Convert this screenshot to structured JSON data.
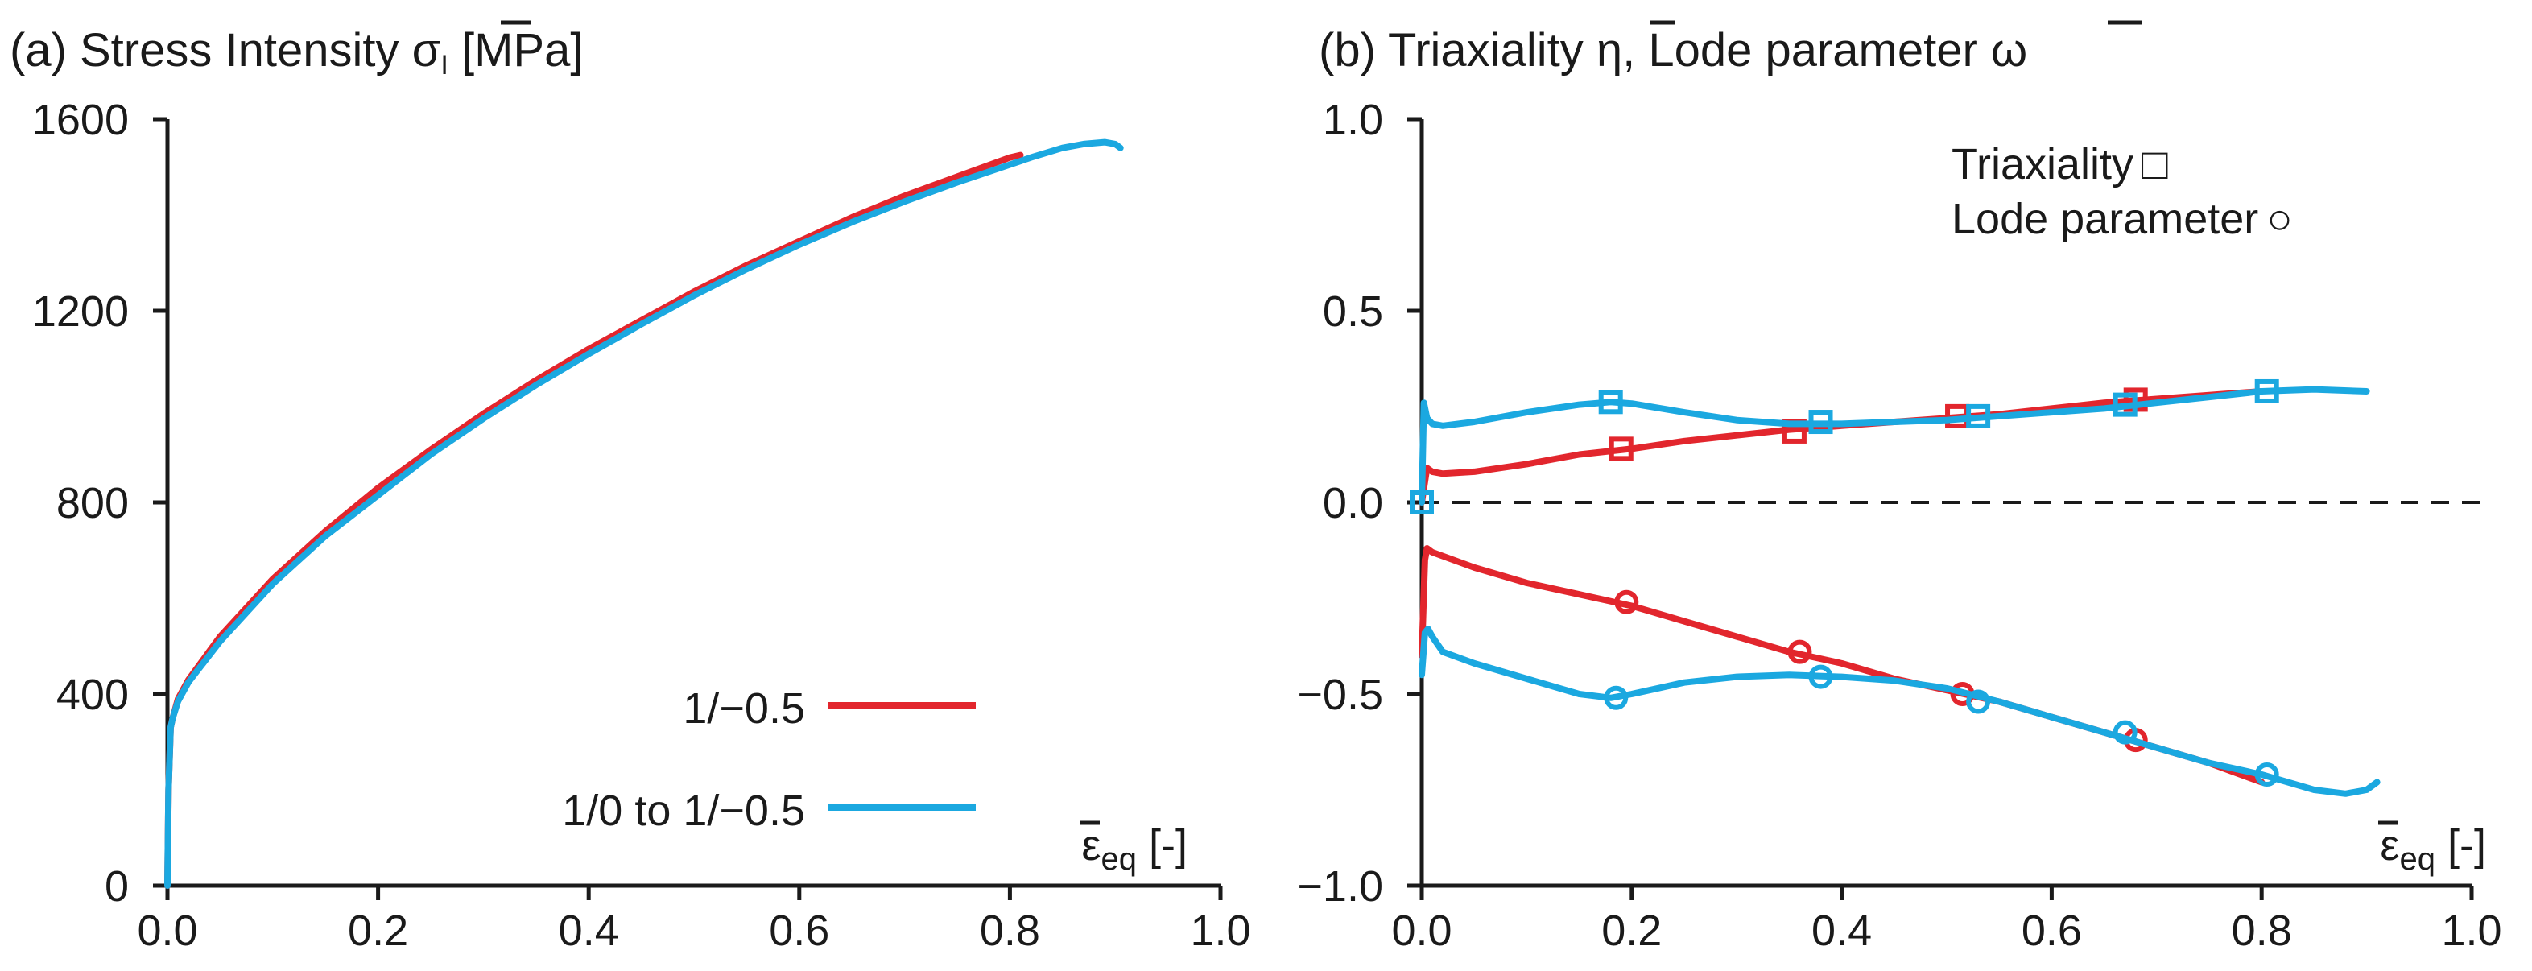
{
  "colors": {
    "red": "#e2262d",
    "blue": "#1ba8e0",
    "axis": "#1a1a1a"
  },
  "chart_data": [
    {
      "type": "line",
      "panel": "a",
      "title_parts": {
        "prefix": "(a) Stress Intensity ",
        "symbol": "σ",
        "sub": "I",
        "suffix": " [MPa]"
      },
      "xlabel": {
        "symbol": "ε",
        "sub": "eq",
        "unit": " [-]"
      },
      "xlim": [
        0.0,
        1.0
      ],
      "ylim": [
        0,
        1600
      ],
      "xticks": [
        "0.0",
        "0.2",
        "0.4",
        "0.6",
        "0.8",
        "1.0"
      ],
      "yticks": [
        "0",
        "400",
        "800",
        "1200",
        "1600"
      ],
      "legend_position": "bottom-right",
      "series": [
        {
          "name": "1/−0.5",
          "color": "#e2262d",
          "x": [
            0,
            0.001,
            0.003,
            0.005,
            0.01,
            0.02,
            0.05,
            0.1,
            0.15,
            0.2,
            0.25,
            0.3,
            0.35,
            0.4,
            0.45,
            0.5,
            0.55,
            0.6,
            0.65,
            0.7,
            0.75,
            0.8,
            0.81
          ],
          "y": [
            0,
            200,
            330,
            350,
            390,
            430,
            520,
            640,
            740,
            830,
            910,
            985,
            1055,
            1120,
            1180,
            1240,
            1295,
            1345,
            1395,
            1440,
            1480,
            1520,
            1525
          ]
        },
        {
          "name": "1/0 to 1/−0.5",
          "color": "#1ba8e0",
          "x": [
            0,
            0.001,
            0.003,
            0.005,
            0.01,
            0.02,
            0.05,
            0.1,
            0.15,
            0.2,
            0.25,
            0.3,
            0.35,
            0.4,
            0.45,
            0.5,
            0.55,
            0.6,
            0.65,
            0.7,
            0.75,
            0.8,
            0.82,
            0.85,
            0.87,
            0.89,
            0.9,
            0.905
          ],
          "y": [
            0,
            200,
            330,
            350,
            385,
            425,
            510,
            630,
            730,
            815,
            900,
            975,
            1045,
            1110,
            1172,
            1232,
            1287,
            1338,
            1385,
            1428,
            1468,
            1505,
            1520,
            1540,
            1548,
            1552,
            1548,
            1540
          ]
        }
      ]
    },
    {
      "type": "line",
      "panel": "b",
      "title_parts": {
        "prefix": "(b) Triaxiality ",
        "eta": "η",
        "middle": ", Lode parameter ",
        "omega": "ω"
      },
      "xlabel": {
        "symbol": "ε",
        "sub": "eq",
        "unit": " [-]"
      },
      "xlim": [
        0.0,
        1.0
      ],
      "ylim": [
        -1.0,
        1.0
      ],
      "xticks": [
        "0.0",
        "0.2",
        "0.4",
        "0.6",
        "0.8",
        "1.0"
      ],
      "yticks": [
        "−1.0",
        "−0.5",
        "0.0",
        "0.5",
        "1.0"
      ],
      "zero_line": "dashed",
      "legend": {
        "triaxiality": "Triaxiality",
        "triaxiality_marker": "□",
        "lode": "Lode parameter",
        "lode_marker": "○"
      },
      "legend_position": "top-right",
      "series": [
        {
          "name": "Triaxiality 1/−0.5",
          "color": "#e2262d",
          "marker": "square",
          "x": [
            0.0,
            0.005,
            0.01,
            0.02,
            0.05,
            0.1,
            0.15,
            0.2,
            0.25,
            0.3,
            0.35,
            0.4,
            0.45,
            0.5,
            0.55,
            0.6,
            0.65,
            0.7,
            0.75,
            0.8
          ],
          "y": [
            0.0,
            0.09,
            0.08,
            0.075,
            0.08,
            0.1,
            0.125,
            0.14,
            0.16,
            0.175,
            0.19,
            0.2,
            0.21,
            0.22,
            0.23,
            0.245,
            0.26,
            0.27,
            0.28,
            0.29
          ],
          "marker_x": [
            0.0,
            0.19,
            0.355,
            0.51,
            0.68
          ],
          "marker_y": [
            0.0,
            0.14,
            0.185,
            0.225,
            0.268
          ]
        },
        {
          "name": "Triaxiality 1/0 to 1/−0.5",
          "color": "#1ba8e0",
          "marker": "square",
          "x": [
            0.0,
            0.002,
            0.005,
            0.01,
            0.02,
            0.05,
            0.1,
            0.15,
            0.18,
            0.2,
            0.25,
            0.3,
            0.35,
            0.4,
            0.45,
            0.5,
            0.55,
            0.6,
            0.65,
            0.7,
            0.75,
            0.8,
            0.85,
            0.9
          ],
          "y": [
            0.0,
            0.26,
            0.22,
            0.205,
            0.2,
            0.21,
            0.235,
            0.255,
            0.262,
            0.258,
            0.235,
            0.215,
            0.205,
            0.205,
            0.21,
            0.215,
            0.225,
            0.235,
            0.245,
            0.26,
            0.275,
            0.29,
            0.295,
            0.29
          ],
          "marker_x": [
            0.0,
            0.18,
            0.38,
            0.53,
            0.67,
            0.805
          ],
          "marker_y": [
            0.0,
            0.262,
            0.21,
            0.225,
            0.255,
            0.29
          ]
        },
        {
          "name": "Lode parameter 1/−0.5",
          "color": "#e2262d",
          "marker": "circle",
          "x": [
            0.0,
            0.003,
            0.005,
            0.01,
            0.05,
            0.1,
            0.15,
            0.2,
            0.25,
            0.3,
            0.35,
            0.4,
            0.45,
            0.5,
            0.55,
            0.6,
            0.65,
            0.7,
            0.75,
            0.8
          ],
          "y": [
            -0.4,
            -0.15,
            -0.12,
            -0.13,
            -0.17,
            -0.21,
            -0.24,
            -0.27,
            -0.31,
            -0.35,
            -0.39,
            -0.42,
            -0.46,
            -0.49,
            -0.52,
            -0.56,
            -0.6,
            -0.64,
            -0.68,
            -0.73
          ],
          "marker_x": [
            0.195,
            0.36,
            0.515,
            0.68
          ],
          "marker_y": [
            -0.26,
            -0.39,
            -0.5,
            -0.62
          ]
        },
        {
          "name": "Lode parameter 1/0 to 1/−0.5",
          "color": "#1ba8e0",
          "marker": "circle",
          "x": [
            0.0,
            0.003,
            0.006,
            0.01,
            0.02,
            0.05,
            0.1,
            0.15,
            0.18,
            0.2,
            0.25,
            0.3,
            0.35,
            0.4,
            0.45,
            0.5,
            0.55,
            0.6,
            0.65,
            0.7,
            0.75,
            0.8,
            0.85,
            0.88,
            0.9,
            0.91
          ],
          "y": [
            -0.45,
            -0.34,
            -0.33,
            -0.35,
            -0.39,
            -0.42,
            -0.46,
            -0.5,
            -0.51,
            -0.5,
            -0.47,
            -0.455,
            -0.45,
            -0.455,
            -0.465,
            -0.485,
            -0.52,
            -0.56,
            -0.6,
            -0.64,
            -0.68,
            -0.71,
            -0.75,
            -0.76,
            -0.75,
            -0.73
          ],
          "marker_x": [
            0.185,
            0.38,
            0.53,
            0.67,
            0.805
          ],
          "marker_y": [
            -0.51,
            -0.455,
            -0.52,
            -0.6,
            -0.71
          ]
        }
      ]
    }
  ]
}
